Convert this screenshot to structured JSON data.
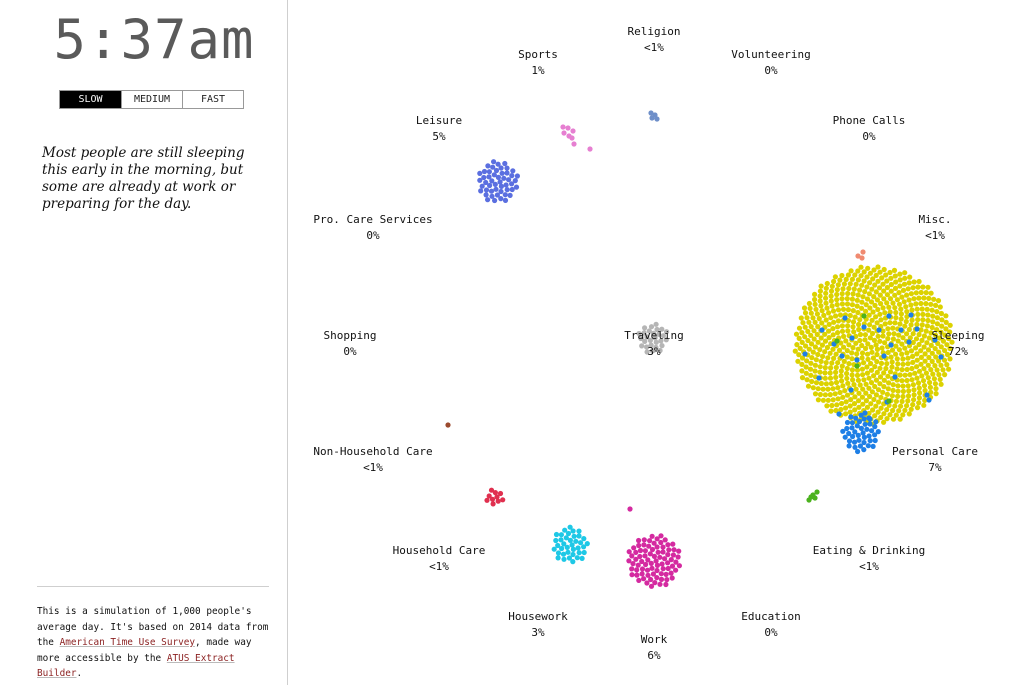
{
  "sidebar": {
    "clock": "5:37am",
    "speed_buttons": [
      {
        "label": "SLOW",
        "active": true
      },
      {
        "label": "MEDIUM",
        "active": false
      },
      {
        "label": "FAST",
        "active": false
      }
    ],
    "description": "Most people are still sleeping this early in the morning, but some are already at work or preparing for the day.",
    "footer": {
      "text_1": "This is a simulation of 1,000 people's average day. It's based on 2014 data from the ",
      "link_1": "American Time Use Survey",
      "text_2": ", made way more accessible by the ",
      "link_2": "ATUS Extract Builder",
      "text_3": "."
    }
  },
  "activities": [
    {
      "id": "religion",
      "name": "Religion",
      "pct": "<1%",
      "color": "#6e8fc9"
    },
    {
      "id": "sports",
      "name": "Sports",
      "pct": "1%",
      "color": "#e67fd1"
    },
    {
      "id": "volunteering",
      "name": "Volunteering",
      "pct": "0%",
      "color": "#999999"
    },
    {
      "id": "leisure",
      "name": "Leisure",
      "pct": "5%",
      "color": "#5b6fe0"
    },
    {
      "id": "phone-calls",
      "name": "Phone Calls",
      "pct": "0%",
      "color": "#999999"
    },
    {
      "id": "pro-care-services",
      "name": "Pro. Care Services",
      "pct": "0%",
      "color": "#999999"
    },
    {
      "id": "misc",
      "name": "Misc.",
      "pct": "<1%",
      "color": "#f08a70"
    },
    {
      "id": "shopping",
      "name": "Shopping",
      "pct": "0%",
      "color": "#999999"
    },
    {
      "id": "traveling",
      "name": "Traveling",
      "pct": "3%",
      "color": "#b5b5b5"
    },
    {
      "id": "sleeping",
      "name": "Sleeping",
      "pct": "72%",
      "color": "#dcd200"
    },
    {
      "id": "non-household-care",
      "name": "Non-Household Care",
      "pct": "<1%",
      "color": "#9b4a2e"
    },
    {
      "id": "personal-care",
      "name": "Personal Care",
      "pct": "7%",
      "color": "#1e7fe6"
    },
    {
      "id": "household-care",
      "name": "Household Care",
      "pct": "<1%",
      "color": "#e0304f"
    },
    {
      "id": "eating-drinking",
      "name": "Eating & Drinking",
      "pct": "<1%",
      "color": "#4bb21e"
    },
    {
      "id": "housework",
      "name": "Housework",
      "pct": "3%",
      "color": "#1ec8e6"
    },
    {
      "id": "education",
      "name": "Education",
      "pct": "0%",
      "color": "#999999"
    },
    {
      "id": "work",
      "name": "Work",
      "pct": "6%",
      "color": "#d42aa0"
    }
  ]
}
